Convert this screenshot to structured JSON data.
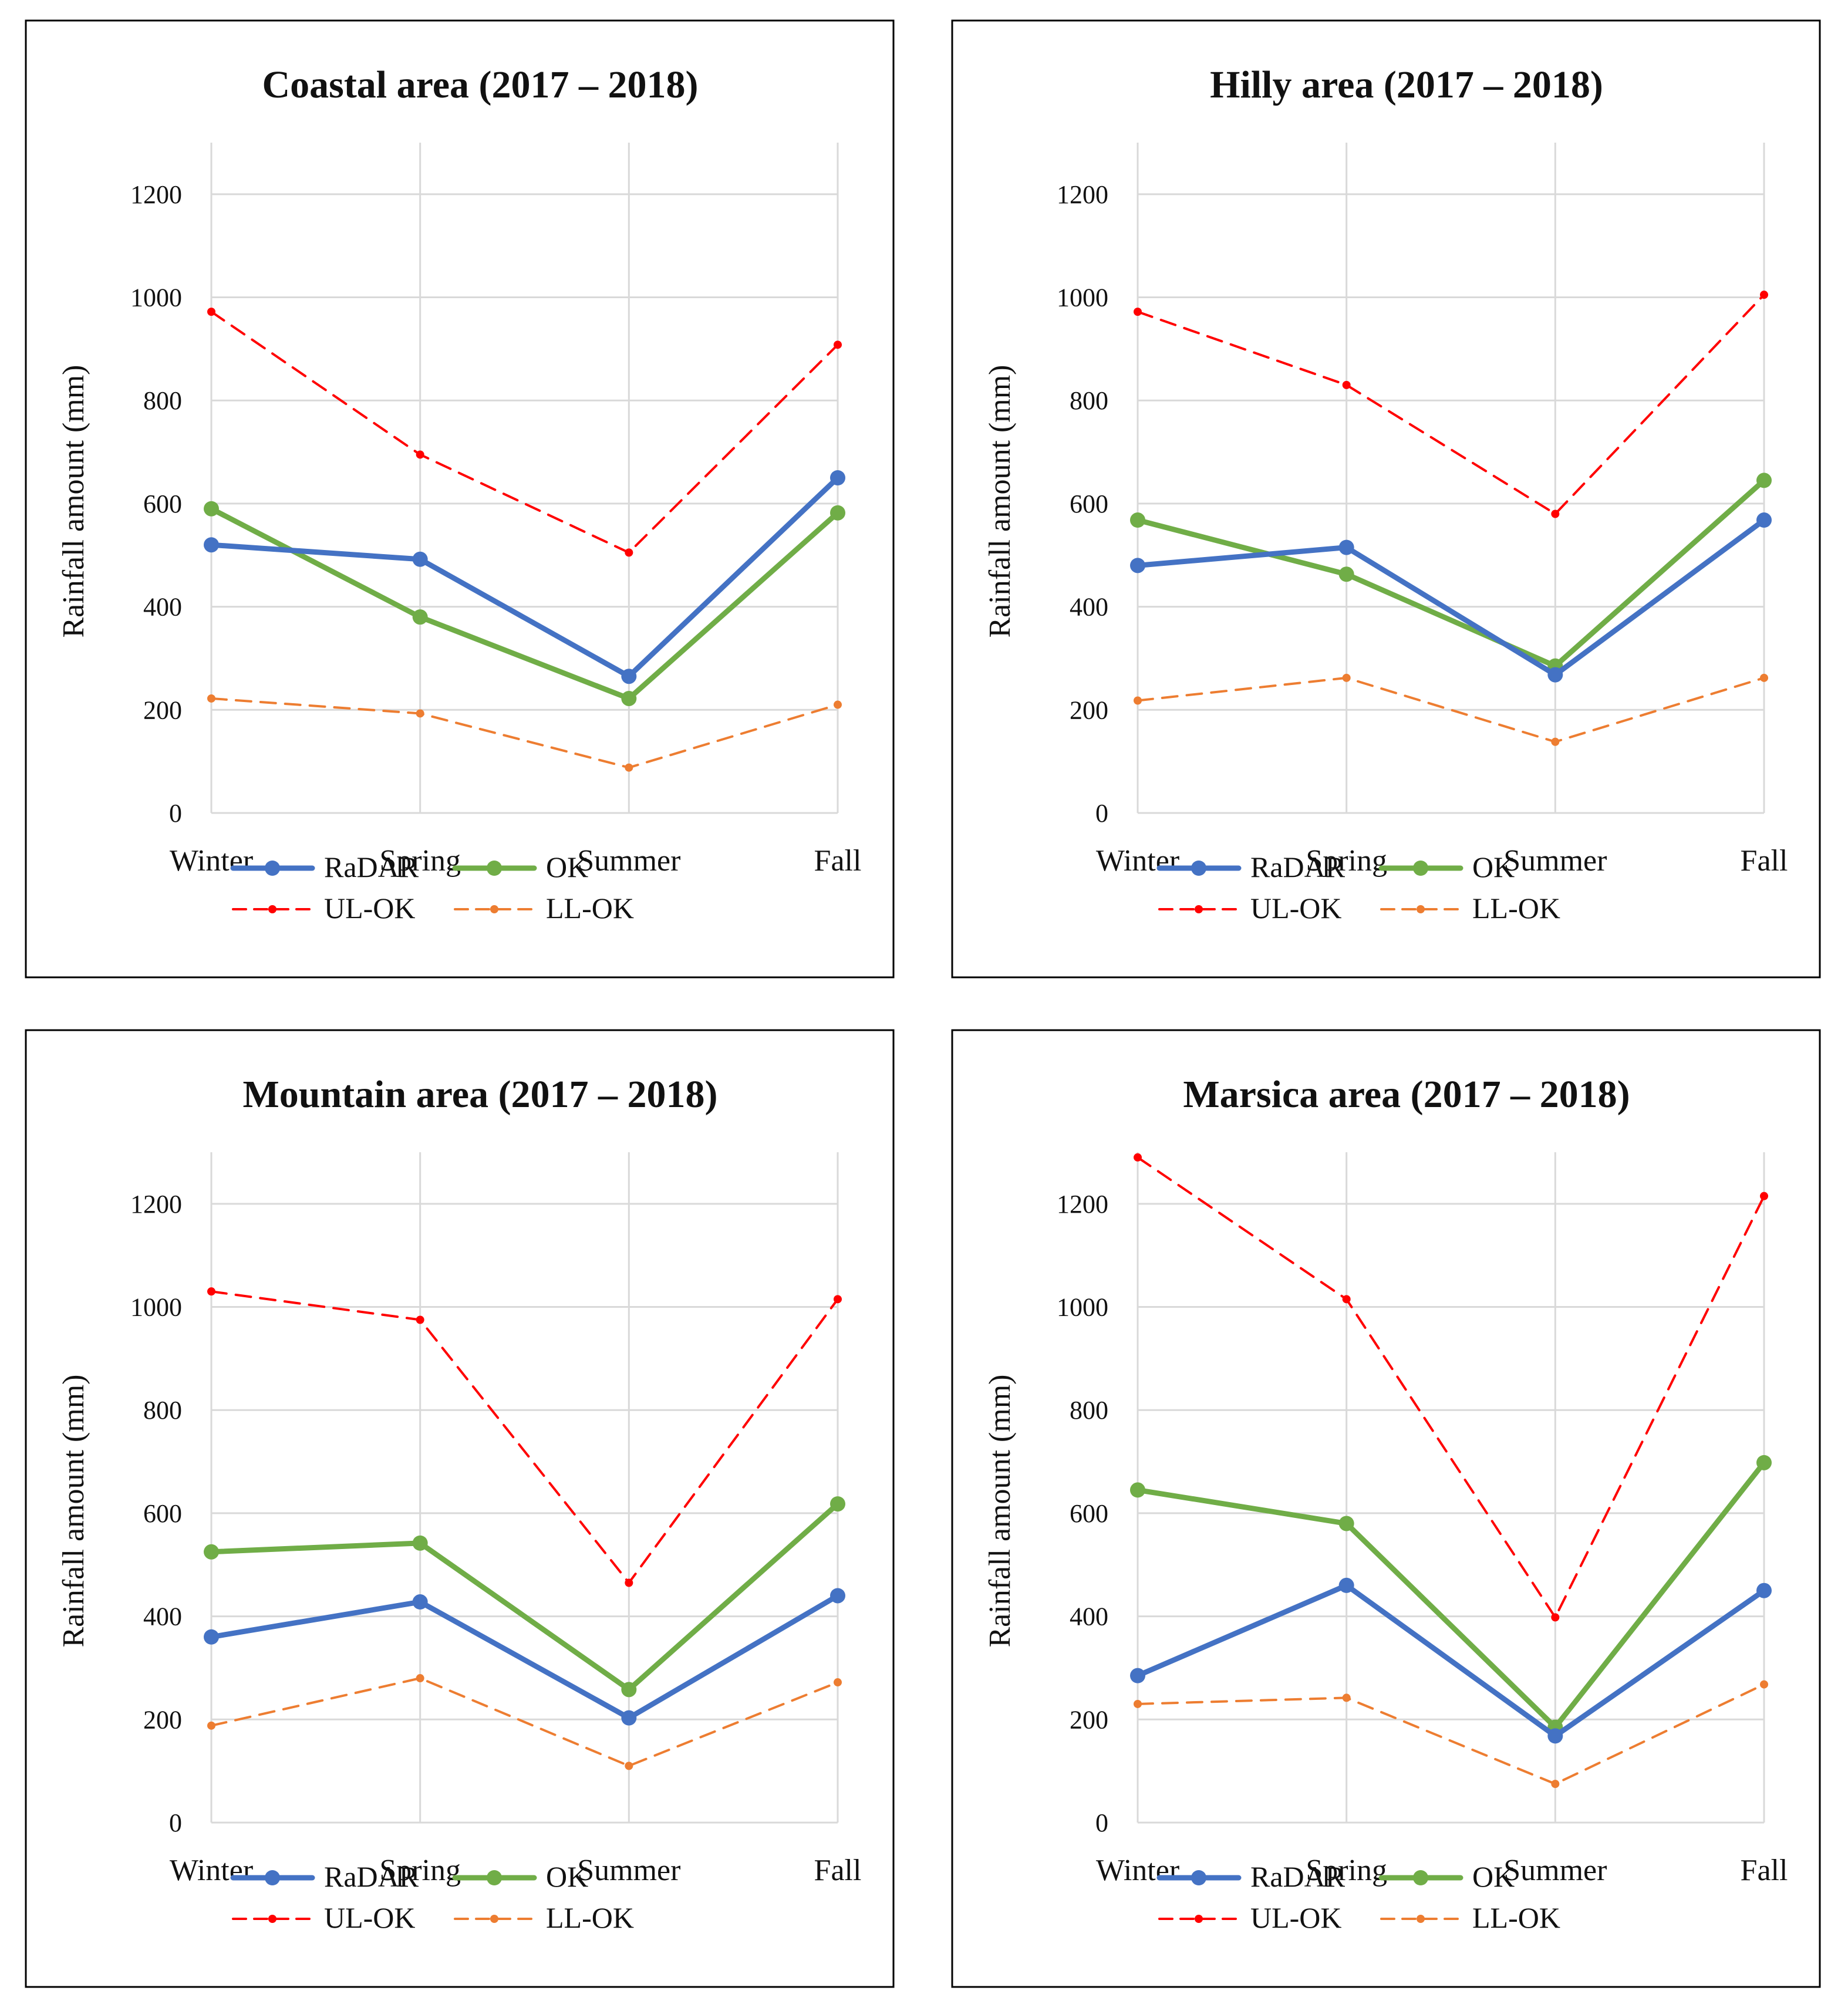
{
  "colors": {
    "RaDAR": "#4472C4",
    "OK": "#70AD47",
    "UL-OK": "#FF0000",
    "LL-OK": "#ED7D31",
    "grid": "#D9D9D9",
    "frame": "#000000"
  },
  "chart_data": [
    {
      "type": "line",
      "title": "Coastal area (2017 – 2018)",
      "xlabel": "",
      "ylabel": "Rainfall amount (mm)",
      "ylim": [
        0,
        1300
      ],
      "yticks": [
        0,
        200,
        400,
        600,
        800,
        1000,
        1200
      ],
      "categories": [
        "Winter",
        "Spring",
        "Summer",
        "Fall"
      ],
      "grid": true,
      "legend_position": "bottom",
      "series": [
        {
          "name": "RaDAR",
          "style": "solid",
          "values": [
            520,
            492,
            265,
            650
          ]
        },
        {
          "name": "OK",
          "style": "solid",
          "values": [
            590,
            380,
            222,
            582
          ]
        },
        {
          "name": "UL-OK",
          "style": "dashed",
          "values": [
            972,
            695,
            505,
            908
          ]
        },
        {
          "name": "LL-OK",
          "style": "dashed",
          "values": [
            222,
            193,
            88,
            210
          ]
        }
      ]
    },
    {
      "type": "line",
      "title": "Hilly area (2017 – 2018)",
      "xlabel": "",
      "ylabel": "Rainfall amount (mm)",
      "ylim": [
        0,
        1300
      ],
      "yticks": [
        0,
        200,
        400,
        600,
        800,
        1000,
        1200
      ],
      "categories": [
        "Winter",
        "Spring",
        "Summer",
        "Fall"
      ],
      "grid": true,
      "legend_position": "bottom",
      "series": [
        {
          "name": "RaDAR",
          "style": "solid",
          "values": [
            480,
            515,
            268,
            568
          ]
        },
        {
          "name": "OK",
          "style": "solid",
          "values": [
            568,
            463,
            285,
            645
          ]
        },
        {
          "name": "UL-OK",
          "style": "dashed",
          "values": [
            972,
            830,
            580,
            1005
          ]
        },
        {
          "name": "LL-OK",
          "style": "dashed",
          "values": [
            218,
            262,
            138,
            262
          ]
        }
      ]
    },
    {
      "type": "line",
      "title": "Mountain area (2017 – 2018)",
      "xlabel": "",
      "ylabel": "Rainfall amount (mm)",
      "ylim": [
        0,
        1300
      ],
      "yticks": [
        0,
        200,
        400,
        600,
        800,
        1000,
        1200
      ],
      "categories": [
        "Winter",
        "Spring",
        "Summer",
        "Fall"
      ],
      "grid": true,
      "legend_position": "bottom",
      "series": [
        {
          "name": "RaDAR",
          "style": "solid",
          "values": [
            360,
            428,
            203,
            440
          ]
        },
        {
          "name": "OK",
          "style": "solid",
          "values": [
            525,
            542,
            258,
            618
          ]
        },
        {
          "name": "UL-OK",
          "style": "dashed",
          "values": [
            1030,
            975,
            465,
            1015
          ]
        },
        {
          "name": "LL-OK",
          "style": "dashed",
          "values": [
            188,
            280,
            110,
            272
          ]
        }
      ]
    },
    {
      "type": "line",
      "title": "Marsica area (2017 – 2018)",
      "xlabel": "",
      "ylabel": "Rainfall amount (mm)",
      "ylim": [
        0,
        1300
      ],
      "yticks": [
        0,
        200,
        400,
        600,
        800,
        1000,
        1200
      ],
      "categories": [
        "Winter",
        "Spring",
        "Summer",
        "Fall"
      ],
      "grid": true,
      "legend_position": "bottom",
      "series": [
        {
          "name": "RaDAR",
          "style": "solid",
          "values": [
            285,
            460,
            168,
            450
          ]
        },
        {
          "name": "OK",
          "style": "solid",
          "values": [
            645,
            580,
            185,
            698
          ]
        },
        {
          "name": "UL-OK",
          "style": "dashed",
          "values": [
            1290,
            1015,
            398,
            1215
          ]
        },
        {
          "name": "LL-OK",
          "style": "dashed",
          "values": [
            230,
            242,
            75,
            268
          ]
        }
      ]
    }
  ]
}
